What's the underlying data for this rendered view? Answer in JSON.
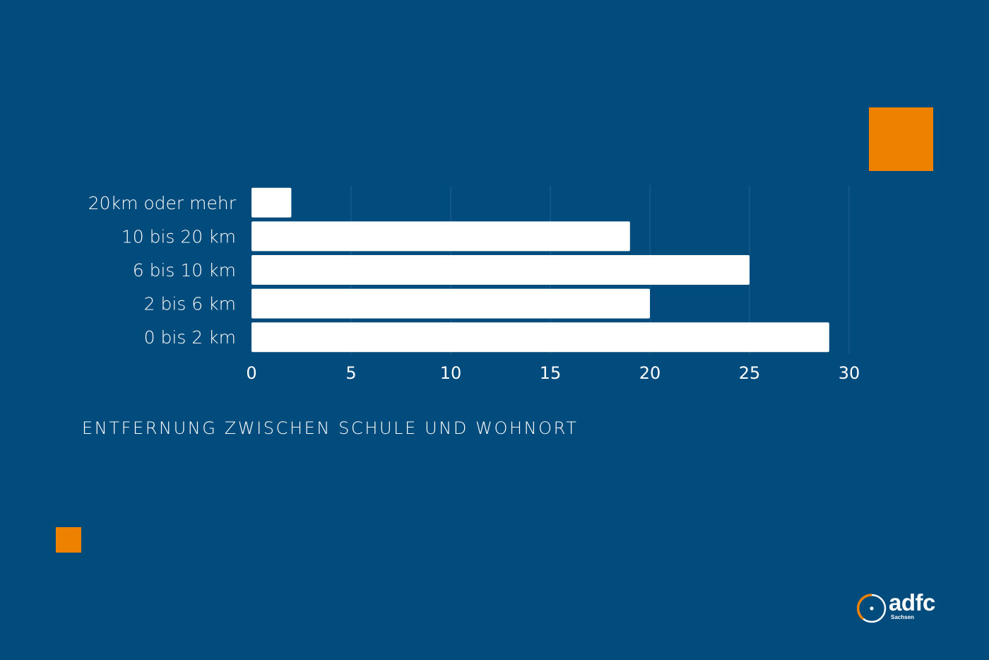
{
  "colors": {
    "background": "#024b7d",
    "bar": "#ffffff",
    "accent": "#ee8100",
    "grid": "#1e6192"
  },
  "chart_data": {
    "type": "bar",
    "orientation": "horizontal",
    "categories": [
      "20km oder mehr",
      "10 bis 20 km",
      "6 bis 10 km",
      "2 bis 6 km",
      "0 bis 2 km"
    ],
    "values": [
      2,
      19,
      25,
      20,
      29
    ],
    "xlim": [
      0,
      30
    ],
    "xticks": [
      "0",
      "5",
      "10",
      "15",
      "20",
      "25",
      "30"
    ],
    "grid": "vertical",
    "caption": "ENTFERNUNG ZWISCHEN SCHULE UND WOHNORT"
  },
  "branding": {
    "logo_text": "adfc",
    "logo_subtext": "Sachsen",
    "logo_icon": "adfc-wheel-icon"
  }
}
